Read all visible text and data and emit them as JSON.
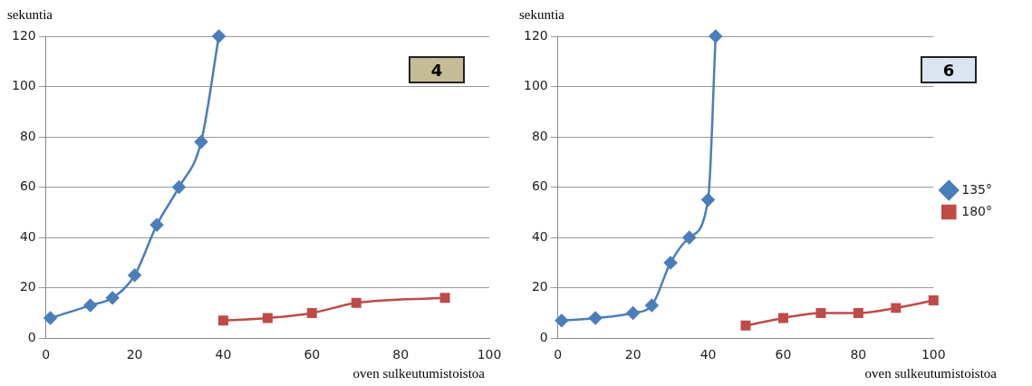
{
  "chart_data": [
    {
      "type": "line",
      "xlabel": "oven sulkeutumistoistoa",
      "ylabel": "sekuntia",
      "annotations": [
        "4"
      ],
      "xlim": [
        0,
        100
      ],
      "xticks": [
        0,
        20,
        40,
        60,
        80,
        100
      ],
      "ylim": [
        0,
        120
      ],
      "yticks": [
        0,
        20,
        40,
        60,
        80,
        100,
        120
      ],
      "grid": "y",
      "legend": false,
      "series": [
        {
          "x": [
            1,
            10,
            15,
            20,
            25,
            30,
            35,
            39
          ],
          "values": [
            8,
            13,
            16,
            25,
            45,
            60,
            78,
            120
          ],
          "color": "#4a7ebb",
          "marker": "diamond"
        },
        {
          "x": [
            40,
            50,
            60,
            70,
            90
          ],
          "values": [
            7,
            8,
            10,
            14,
            16
          ],
          "color": "#be4b48",
          "marker": "square"
        }
      ]
    },
    {
      "type": "line",
      "xlabel": "oven sulkeutumistoistoa",
      "ylabel": "sekuntia",
      "annotations": [
        "6"
      ],
      "xlim": [
        0,
        100
      ],
      "xticks": [
        0,
        20,
        40,
        60,
        80,
        100
      ],
      "ylim": [
        0,
        120
      ],
      "yticks": [
        0,
        20,
        40,
        60,
        80,
        100,
        120
      ],
      "grid": "y",
      "legend": "right",
      "series": [
        {
          "name": "135°",
          "x": [
            1,
            10,
            20,
            25,
            30,
            35,
            40,
            42
          ],
          "values": [
            7,
            8,
            10,
            13,
            30,
            40,
            55,
            120
          ],
          "color": "#4a7ebb",
          "marker": "diamond"
        },
        {
          "name": "180°",
          "x": [
            50,
            60,
            70,
            80,
            90,
            100
          ],
          "values": [
            5,
            8,
            10,
            10,
            12,
            15
          ],
          "color": "#be4b48",
          "marker": "square"
        }
      ]
    }
  ]
}
